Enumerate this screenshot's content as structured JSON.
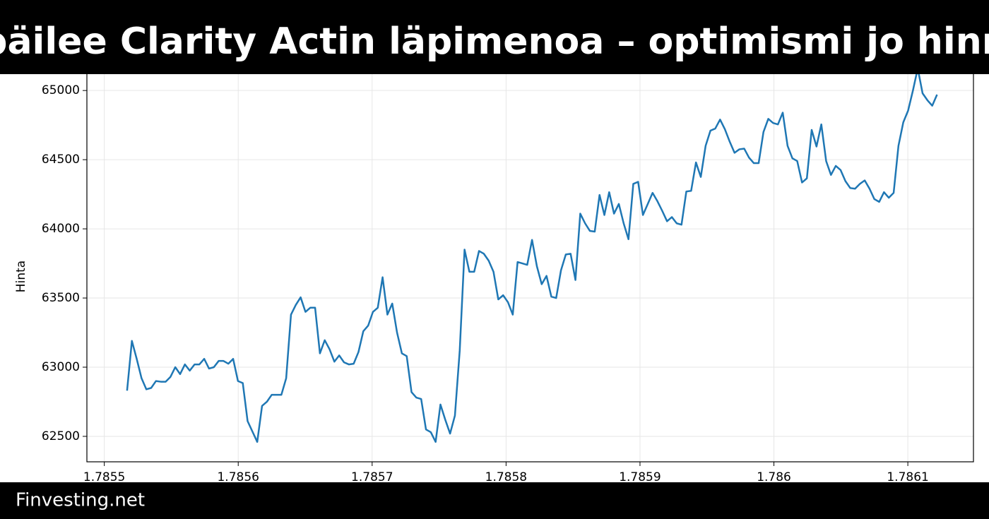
{
  "header": {
    "title": "päilee Clarity Actin läpimenoa – optimismi jo hinn"
  },
  "chart_data": {
    "type": "line",
    "y_label": "Hinta",
    "color": "#1f77b4",
    "grid": true,
    "xlim": [
      1.785487,
      1.786149
    ],
    "xticks": [
      1.7855,
      1.7856,
      1.7857,
      1.7858,
      1.7859,
      1.786,
      1.7861
    ],
    "ylim": [
      62316,
      65200
    ],
    "yticks": [
      62500,
      63000,
      63500,
      64000,
      64500,
      65000
    ],
    "x": [
      1.785517,
      1.7855206,
      1.7855242,
      1.7855278,
      1.7855314,
      1.785535,
      1.7855386,
      1.7855422,
      1.7855458,
      1.7855494,
      1.785553,
      1.7855566,
      1.7855602,
      1.7855638,
      1.7855674,
      1.785571,
      1.7855746,
      1.7855782,
      1.7855818,
      1.7855854,
      1.785589,
      1.7855926,
      1.7855962,
      1.7855998,
      1.7856034,
      1.785607,
      1.7856106,
      1.7856142,
      1.7856178,
      1.7856214,
      1.785625,
      1.7856286,
      1.7856322,
      1.7856358,
      1.7856394,
      1.785643,
      1.7856466,
      1.7856502,
      1.7856538,
      1.7856574,
      1.785661,
      1.7856646,
      1.7856682,
      1.7856718,
      1.7856754,
      1.785679,
      1.7856826,
      1.7856862,
      1.7856898,
      1.7856934,
      1.785697,
      1.7857006,
      1.7857042,
      1.7857078,
      1.7857114,
      1.785715,
      1.7857186,
      1.7857222,
      1.7857258,
      1.7857294,
      1.785733,
      1.7857366,
      1.7857402,
      1.7857438,
      1.7857474,
      1.785751,
      1.7857546,
      1.7857582,
      1.7857618,
      1.7857654,
      1.785769,
      1.7857726,
      1.7857762,
      1.7857798,
      1.7857834,
      1.785787,
      1.7857906,
      1.7857942,
      1.7857978,
      1.7858014,
      1.785805,
      1.7858086,
      1.7858122,
      1.7858158,
      1.7858194,
      1.785823,
      1.7858266,
      1.7858302,
      1.7858338,
      1.7858374,
      1.785841,
      1.7858446,
      1.7858482,
      1.7858518,
      1.7858554,
      1.785859,
      1.7858626,
      1.7858662,
      1.7858698,
      1.7858734,
      1.785877,
      1.7858806,
      1.7858842,
      1.7858878,
      1.7858914,
      1.785895,
      1.7858986,
      1.7859022,
      1.7859058,
      1.7859094,
      1.785913,
      1.7859166,
      1.7859202,
      1.7859238,
      1.7859274,
      1.785931,
      1.7859346,
      1.7859382,
      1.7859418,
      1.7859454,
      1.785949,
      1.7859526,
      1.7859562,
      1.7859598,
      1.7859634,
      1.785967,
      1.7859706,
      1.7859742,
      1.7859778,
      1.7859814,
      1.785985,
      1.7859886,
      1.7859922,
      1.7859958,
      1.7859994,
      1.786003,
      1.7860066,
      1.7860102,
      1.7860138,
      1.7860174,
      1.786021,
      1.7860246,
      1.7860282,
      1.7860318,
      1.7860354,
      1.786039,
      1.7860426,
      1.7860462,
      1.7860498,
      1.7860534,
      1.786057,
      1.7860606,
      1.7860642,
      1.7860678,
      1.7860714,
      1.786075,
      1.7860786,
      1.7860822,
      1.7860858,
      1.7860894,
      1.786093,
      1.7860966,
      1.7861002,
      1.7861038,
      1.7861074,
      1.786111,
      1.7861146,
      1.7861182,
      1.7861218
    ],
    "values": [
      62830,
      63190,
      63060,
      62920,
      62840,
      62850,
      62900,
      62895,
      62895,
      62930,
      63000,
      62950,
      63020,
      62975,
      63020,
      63020,
      63060,
      62990,
      63000,
      63045,
      63045,
      63025,
      63060,
      62900,
      62885,
      62610,
      62535,
      62460,
      62720,
      62750,
      62800,
      62800,
      62800,
      62920,
      63380,
      63450,
      63505,
      63400,
      63430,
      63430,
      63100,
      63195,
      63130,
      63040,
      63085,
      63035,
      63020,
      63025,
      63110,
      63260,
      63300,
      63400,
      63430,
      63650,
      63380,
      63460,
      63250,
      63100,
      63080,
      62820,
      62780,
      62770,
      62550,
      62530,
      62460,
      62730,
      62620,
      62520,
      62650,
      63120,
      63850,
      63690,
      63690,
      63840,
      63820,
      63770,
      63690,
      63490,
      63520,
      63470,
      63380,
      63760,
      63750,
      63740,
      63920,
      63730,
      63600,
      63660,
      63510,
      63500,
      63700,
      63815,
      63820,
      63630,
      64110,
      64040,
      63985,
      63980,
      64245,
      64100,
      64265,
      64110,
      64180,
      64040,
      63925,
      64325,
      64340,
      64100,
      64180,
      64260,
      64200,
      64130,
      64055,
      64085,
      64040,
      64030,
      64270,
      64275,
      64480,
      64375,
      64600,
      64710,
      64725,
      64790,
      64720,
      64630,
      64550,
      64575,
      64580,
      64515,
      64475,
      64475,
      64700,
      64795,
      64765,
      64755,
      64840,
      64600,
      64510,
      64490,
      64335,
      64365,
      64715,
      64595,
      64755,
      64490,
      64390,
      64455,
      64425,
      64345,
      64295,
      64290,
      64325,
      64350,
      64290,
      64215,
      64195,
      64265,
      64225,
      64260,
      64600,
      64770,
      64855,
      65000,
      65160,
      64980,
      64930,
      64890,
      64970
    ]
  },
  "footer": {
    "brand": "Finvesting.net"
  }
}
